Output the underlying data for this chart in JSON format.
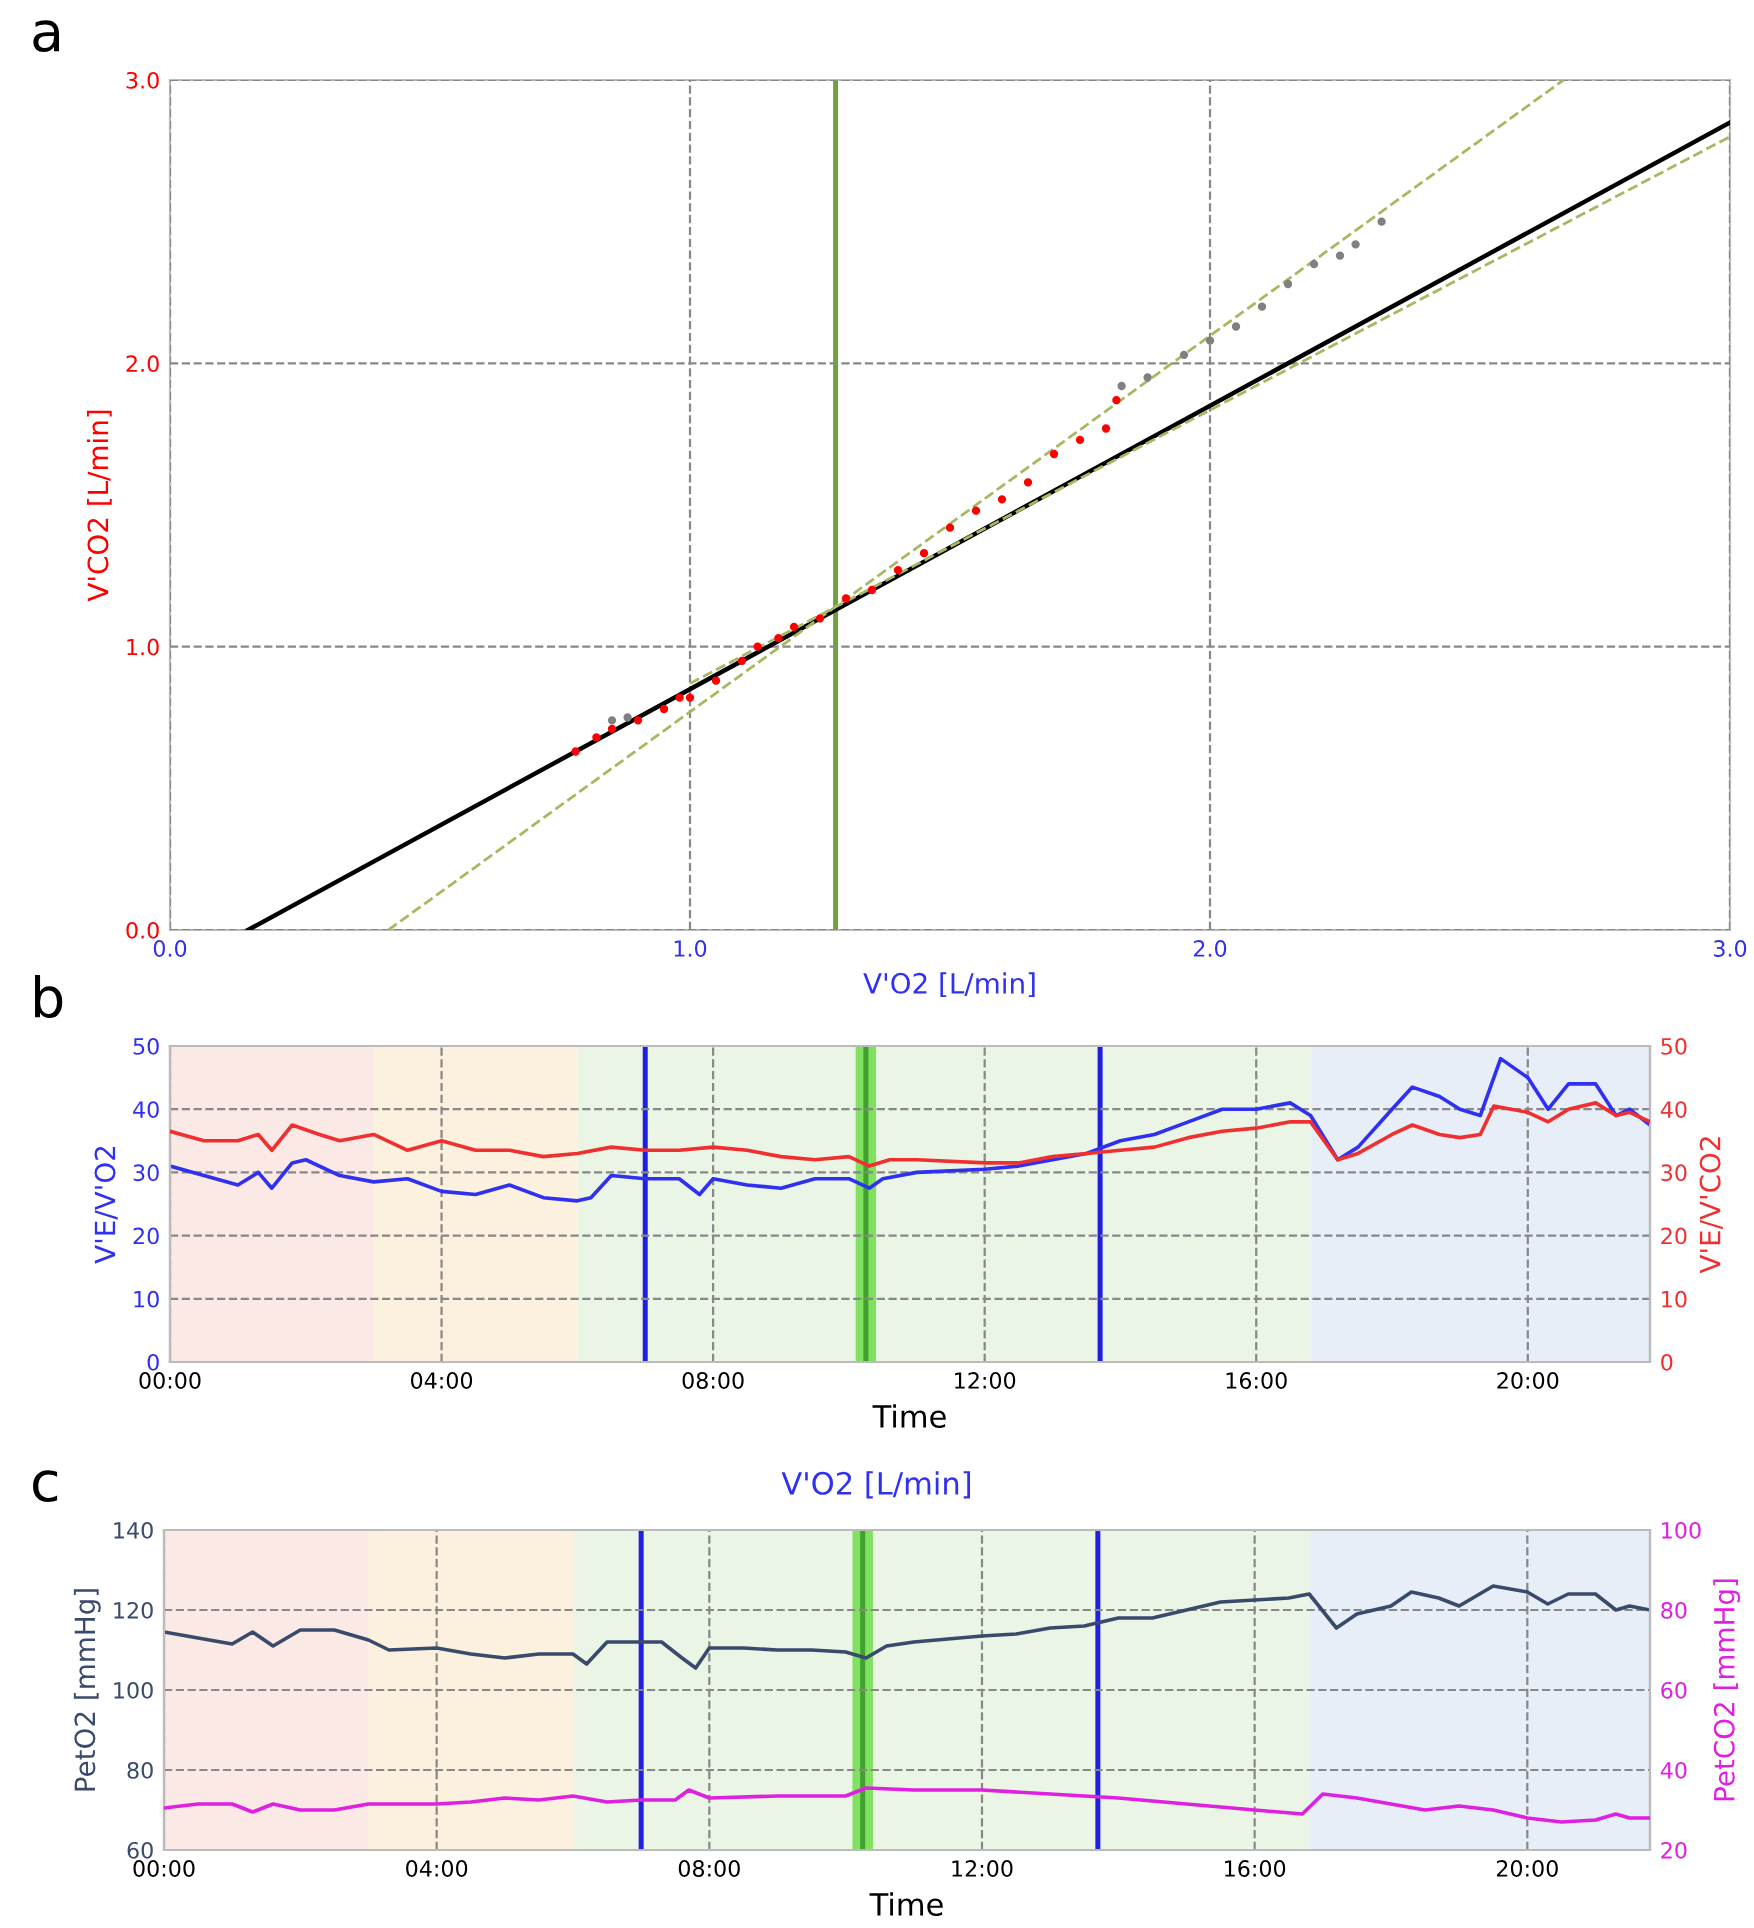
{
  "chart_data": [
    {
      "type": "scatter",
      "xlabel": "V'O2 [L/min]",
      "ylabel": "V'CO2 [L/min]",
      "xlim": [
        0,
        3
      ],
      "ylim": [
        0,
        3
      ],
      "xticks": [
        {
          "value": 0,
          "label": "0.0"
        },
        {
          "value": 1,
          "label": "1.0"
        },
        {
          "value": 2,
          "label": "2.0"
        },
        {
          "value": 3,
          "label": "3.0"
        }
      ],
      "yticks": [
        {
          "value": 0,
          "label": "0.0"
        },
        {
          "value": 1,
          "label": "1.0"
        },
        {
          "value": 2,
          "label": "2.0"
        },
        {
          "value": 3,
          "label": "3.0"
        }
      ],
      "grid": true,
      "annotations": [
        "a"
      ],
      "series": [
        {
          "type": "scatter",
          "color": "#ff0000",
          "x": [
            0.78,
            0.82,
            0.85,
            0.9,
            0.95,
            0.98,
            1.0,
            1.05,
            1.1,
            1.13,
            1.17,
            1.2,
            1.25,
            1.3,
            1.35,
            1.4,
            1.45,
            1.5,
            1.55,
            1.6,
            1.65,
            1.7,
            1.75,
            1.8,
            1.82
          ],
          "values": [
            0.63,
            0.68,
            0.71,
            0.74,
            0.78,
            0.82,
            0.82,
            0.88,
            0.95,
            1.0,
            1.03,
            1.07,
            1.1,
            1.17,
            1.2,
            1.27,
            1.33,
            1.42,
            1.48,
            1.52,
            1.58,
            1.68,
            1.73,
            1.77,
            1.87
          ]
        },
        {
          "type": "scatter",
          "color": "#808080",
          "x": [
            0.85,
            0.88,
            1.83,
            1.88,
            1.95,
            2.0,
            2.05,
            2.1,
            2.15,
            2.2,
            2.25,
            2.28,
            2.33
          ],
          "values": [
            0.74,
            0.75,
            1.92,
            1.95,
            2.03,
            2.08,
            2.13,
            2.2,
            2.28,
            2.35,
            2.38,
            2.42,
            2.5
          ]
        },
        {
          "type": "line",
          "color": "#000000",
          "line_style": "solid",
          "x": [
            0.15,
            3.0
          ],
          "values": [
            0,
            2.85
          ]
        },
        {
          "type": "line",
          "color": "#a8b860",
          "line_style": "dashed",
          "x": [
            0.42,
            2.68
          ],
          "values": [
            0,
            3.0
          ]
        },
        {
          "type": "line",
          "color": "#a8b860",
          "line_style": "dashed",
          "x": [
            1.0,
            3.0
          ],
          "values": [
            0.87,
            2.8
          ]
        }
      ],
      "ref_lines": [
        {
          "axis": "x",
          "value": 1.28,
          "color": "#70a040"
        }
      ]
    },
    {
      "type": "line",
      "xlabel": "Time",
      "ylabel": "V'E/V'O2",
      "y2label": "V'E/V'CO2",
      "xlim": [
        0,
        21.8
      ],
      "xticks": [
        {
          "value": 0,
          "label": "00:00"
        },
        {
          "value": 4,
          "label": "04:00"
        },
        {
          "value": 8,
          "label": "08:00"
        },
        {
          "value": 12,
          "label": "12:00"
        },
        {
          "value": 16,
          "label": "16:00"
        },
        {
          "value": 20,
          "label": "20:00"
        }
      ],
      "ylim": [
        0,
        50
      ],
      "yticks": [
        0,
        10,
        20,
        30,
        40,
        50
      ],
      "y2lim": [
        0,
        50
      ],
      "y2ticks": [
        0,
        10,
        20,
        30,
        40,
        50
      ],
      "grid": true,
      "annotations": [
        "b"
      ],
      "series": [
        {
          "color": "#3030f0",
          "x": [
            0,
            0.5,
            1,
            1.3,
            1.5,
            1.8,
            2,
            2.5,
            3,
            3.5,
            4,
            4.5,
            5,
            5.5,
            6,
            6.2,
            6.5,
            7,
            7.5,
            7.8,
            8,
            8.5,
            9,
            9.5,
            10,
            10.3,
            10.5,
            11,
            12,
            12.5,
            13,
            13.5,
            14,
            14.5,
            15,
            15.5,
            16,
            16.5,
            16.8,
            17.2,
            17.5,
            18,
            18.3,
            18.7,
            19,
            19.3,
            19.6,
            20,
            20.3,
            20.6,
            21,
            21.3,
            21.5,
            21.8
          ],
          "values": [
            31,
            29.5,
            28,
            30,
            27.5,
            31.5,
            32,
            29.5,
            28.5,
            29,
            27,
            26.5,
            28,
            26,
            25.5,
            26,
            29.5,
            29,
            29,
            26.5,
            29,
            28,
            27.5,
            29,
            29,
            27.5,
            29,
            30,
            30.5,
            31,
            32,
            33,
            35,
            36,
            38,
            40,
            40,
            41,
            39,
            32,
            34,
            40,
            43.5,
            42,
            40,
            39,
            48,
            45,
            40,
            44,
            44,
            39,
            40,
            37.5
          ]
        },
        {
          "color": "#f03030",
          "axis": "y2",
          "x": [
            0,
            0.5,
            1,
            1.3,
            1.5,
            1.8,
            2.2,
            2.5,
            3,
            3.5,
            4,
            4.5,
            5,
            5.5,
            6,
            6.5,
            7,
            7.5,
            8,
            8.5,
            9,
            9.5,
            10,
            10.3,
            10.6,
            11,
            12,
            12.5,
            13,
            13.5,
            14,
            14.5,
            15,
            15.5,
            16,
            16.5,
            16.8,
            17.2,
            17.5,
            18,
            18.3,
            18.7,
            19,
            19.3,
            19.5,
            20,
            20.3,
            20.6,
            21,
            21.3,
            21.5,
            21.8
          ],
          "values": [
            36.5,
            35,
            35,
            36,
            33.5,
            37.5,
            36,
            35,
            36,
            33.5,
            35,
            33.5,
            33.5,
            32.5,
            33,
            34,
            33.5,
            33.5,
            34,
            33.5,
            32.5,
            32,
            32.5,
            31,
            32,
            32,
            31.5,
            31.5,
            32.5,
            33,
            33.5,
            34,
            35.5,
            36.5,
            37,
            38,
            38,
            32,
            33,
            36,
            37.5,
            36,
            35.5,
            36,
            40.5,
            39.5,
            38,
            40,
            41,
            39,
            39.5,
            38
          ]
        }
      ],
      "bands": [
        {
          "axis": "x",
          "from": 0,
          "to": 3.0,
          "color": "#fbe9e6"
        },
        {
          "axis": "x",
          "from": 3.0,
          "to": 6.0,
          "color": "#fcf0de"
        },
        {
          "axis": "x",
          "from": 6.0,
          "to": 16.8,
          "color": "#eaf5e6"
        },
        {
          "axis": "x",
          "from": 16.8,
          "to": 21.8,
          "color": "#e7eef8"
        },
        {
          "axis": "x",
          "from": 10.1,
          "to": 10.4,
          "color": "#80e060"
        }
      ],
      "ref_lines": [
        {
          "axis": "x",
          "value": 7.0,
          "color": "#2020e0"
        },
        {
          "axis": "x",
          "value": 13.7,
          "color": "#2020e0"
        },
        {
          "axis": "x",
          "value": 10.25,
          "color": "#40a030"
        }
      ]
    },
    {
      "type": "line",
      "xlabel": "Time",
      "ylabel": "PetO2 [mmHg]",
      "y2label": "PetCO2 [mmHg]",
      "xlim": [
        0,
        21.8
      ],
      "xticks": [
        {
          "value": 0,
          "label": "00:00"
        },
        {
          "value": 4,
          "label": "04:00"
        },
        {
          "value": 8,
          "label": "08:00"
        },
        {
          "value": 12,
          "label": "12:00"
        },
        {
          "value": 16,
          "label": "16:00"
        },
        {
          "value": 20,
          "label": "20:00"
        }
      ],
      "ylim": [
        60,
        140
      ],
      "yticks": [
        60,
        80,
        100,
        120,
        140
      ],
      "y2lim": [
        20,
        100
      ],
      "y2ticks": [
        20,
        40,
        60,
        80,
        100
      ],
      "grid": true,
      "annotations": [
        "c",
        "V'O2 [L/min]"
      ],
      "series": [
        {
          "color": "#3a4a6a",
          "x": [
            0,
            0.5,
            1,
            1.3,
            1.6,
            2,
            2.5,
            3,
            3.3,
            4,
            4.5,
            5,
            5.5,
            6,
            6.2,
            6.5,
            7,
            7.3,
            7.6,
            7.8,
            8,
            8.5,
            9,
            9.5,
            10,
            10.3,
            10.6,
            11,
            12,
            12.5,
            13,
            13.5,
            14,
            14.5,
            15,
            15.5,
            16,
            16.5,
            16.8,
            17.2,
            17.5,
            18,
            18.3,
            18.7,
            19,
            19.5,
            20,
            20.3,
            20.6,
            21,
            21.3,
            21.5,
            21.8
          ],
          "values": [
            114.5,
            113,
            111.5,
            114.5,
            111,
            115,
            115,
            112.5,
            110,
            110.5,
            109,
            108,
            109,
            109,
            106.5,
            112,
            112,
            112,
            108,
            105.5,
            110.5,
            110.5,
            110,
            110,
            109.5,
            108,
            111,
            112,
            113.5,
            114,
            115.5,
            116,
            118,
            118,
            120,
            122,
            122.5,
            123,
            124,
            115.5,
            119,
            121,
            124.5,
            123,
            121,
            126,
            124.5,
            121.5,
            124,
            124,
            120,
            121,
            120
          ]
        },
        {
          "color": "#e020e0",
          "axis": "y2",
          "x": [
            0,
            0.5,
            1,
            1.3,
            1.6,
            2,
            2.5,
            3,
            4,
            4.5,
            5,
            5.5,
            6,
            6.5,
            7,
            7.5,
            7.7,
            8,
            9,
            10,
            10.3,
            11,
            12,
            13,
            14,
            15,
            16,
            16.7,
            17,
            17.5,
            18,
            18.5,
            19,
            19.5,
            20,
            20.5,
            21,
            21.3,
            21.5,
            21.8
          ],
          "values": [
            30.5,
            31.5,
            31.5,
            29.5,
            31.5,
            30,
            30,
            31.5,
            31.5,
            32,
            33,
            32.5,
            33.5,
            32,
            32.5,
            32.5,
            35,
            33,
            33.5,
            33.5,
            35.5,
            35,
            35,
            34,
            33,
            31.5,
            30,
            29,
            34,
            33,
            31.5,
            30,
            31,
            30,
            28,
            27,
            27.5,
            29,
            28,
            28
          ]
        }
      ],
      "bands": [
        {
          "axis": "x",
          "from": 0,
          "to": 3.0,
          "color": "#fbe9e6"
        },
        {
          "axis": "x",
          "from": 3.0,
          "to": 6.0,
          "color": "#fcf0de"
        },
        {
          "axis": "x",
          "from": 6.0,
          "to": 16.8,
          "color": "#eaf5e6"
        },
        {
          "axis": "x",
          "from": 16.8,
          "to": 21.8,
          "color": "#e7eef8"
        },
        {
          "axis": "x",
          "from": 10.1,
          "to": 10.4,
          "color": "#80e060"
        }
      ],
      "ref_lines": [
        {
          "axis": "x",
          "value": 7.0,
          "color": "#2020e0"
        },
        {
          "axis": "x",
          "value": 13.7,
          "color": "#2020e0"
        },
        {
          "axis": "x",
          "value": 10.25,
          "color": "#40a030"
        }
      ]
    }
  ]
}
